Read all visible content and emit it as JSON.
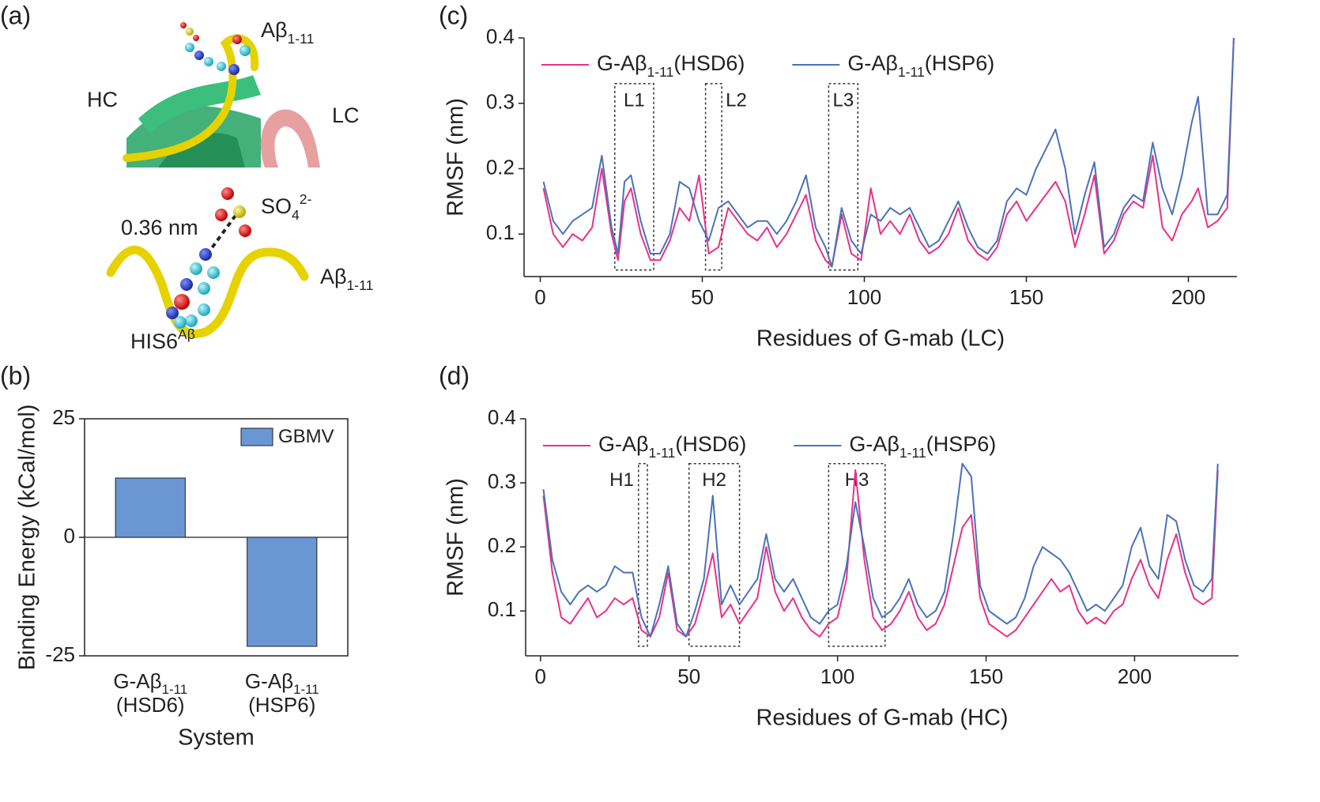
{
  "panel_a": {
    "panel_label": "(a)",
    "texts": {
      "ab_top": [
        {
          "t": "Aβ"
        },
        {
          "t": "1-11",
          "sub": true
        }
      ],
      "hc": [
        {
          "t": "HC"
        }
      ],
      "lc": [
        {
          "t": "LC"
        }
      ],
      "distance": [
        {
          "t": "0.36 nm"
        }
      ],
      "sulfate": [
        {
          "t": "SO"
        },
        {
          "t": "4",
          "sub": true
        },
        {
          "t": "2-",
          "sup": true
        }
      ],
      "ab_bottom": [
        {
          "t": "Aβ"
        },
        {
          "t": "1-11",
          "sub": true
        }
      ],
      "his": [
        {
          "t": "HIS6"
        },
        {
          "t": "Aβ",
          "sup": true
        }
      ]
    }
  },
  "chart_data": [
    {
      "type": "bar",
      "panel_label": "(b)",
      "y_label": "Binding Energy (kCal/mol)",
      "x_label": "System",
      "categories": [
        {
          "name": [
            {
              "t": "G-Aβ"
            },
            {
              "t": "1-11",
              "sub": true
            }
          ],
          "system": "(HSD6)"
        },
        {
          "name": [
            {
              "t": "G-Aβ"
            },
            {
              "t": "1-11",
              "sub": true
            }
          ],
          "system": "(HSP6)"
        }
      ],
      "series": [
        {
          "name": [
            {
              "t": "GBMV"
            }
          ],
          "color": "#6a97d4",
          "values": [
            12.5,
            -23
          ]
        }
      ],
      "ylim": [
        -25,
        25
      ],
      "yticks": [
        -25,
        0,
        25
      ],
      "legend": "upper right",
      "zero_line": true
    },
    {
      "type": "line",
      "panel_label": "(c)",
      "y_label": "RMSF (nm)",
      "x_label": "Residues of G-mab (LC)",
      "x": [
        1,
        4,
        7,
        10,
        13,
        16,
        19,
        22,
        24,
        26,
        28,
        31,
        34,
        37,
        40,
        43,
        46,
        49,
        52,
        55,
        58,
        61,
        64,
        67,
        70,
        73,
        76,
        79,
        82,
        85,
        88,
        90,
        93,
        96,
        99,
        102,
        105,
        108,
        111,
        114,
        117,
        120,
        123,
        126,
        129,
        132,
        135,
        138,
        141,
        144,
        147,
        150,
        153,
        156,
        159,
        162,
        165,
        168,
        171,
        174,
        177,
        180,
        183,
        186,
        189,
        192,
        195,
        198,
        201,
        203,
        206,
        209,
        212,
        214
      ],
      "series": [
        {
          "name": [
            {
              "t": "G-Aβ"
            },
            {
              "t": "1-11",
              "sub": true
            },
            {
              "t": "(HSD6)"
            }
          ],
          "color": "#e8318a",
          "values": [
            0.17,
            0.1,
            0.08,
            0.1,
            0.09,
            0.11,
            0.2,
            0.1,
            0.06,
            0.15,
            0.17,
            0.1,
            0.06,
            0.06,
            0.09,
            0.14,
            0.12,
            0.19,
            0.07,
            0.08,
            0.14,
            0.12,
            0.1,
            0.09,
            0.11,
            0.08,
            0.1,
            0.13,
            0.16,
            0.09,
            0.06,
            0.05,
            0.13,
            0.07,
            0.06,
            0.17,
            0.1,
            0.12,
            0.1,
            0.13,
            0.09,
            0.07,
            0.08,
            0.1,
            0.14,
            0.09,
            0.07,
            0.06,
            0.08,
            0.13,
            0.15,
            0.12,
            0.14,
            0.16,
            0.18,
            0.15,
            0.08,
            0.13,
            0.19,
            0.07,
            0.09,
            0.13,
            0.15,
            0.14,
            0.22,
            0.11,
            0.09,
            0.13,
            0.15,
            0.17,
            0.11,
            0.12,
            0.14,
            0.4
          ]
        },
        {
          "name": [
            {
              "t": "G-Aβ"
            },
            {
              "t": "1-11",
              "sub": true
            },
            {
              "t": "(HSP6)"
            }
          ],
          "color": "#4a72b8",
          "values": [
            0.18,
            0.12,
            0.1,
            0.12,
            0.13,
            0.14,
            0.22,
            0.11,
            0.07,
            0.18,
            0.19,
            0.12,
            0.07,
            0.07,
            0.1,
            0.18,
            0.17,
            0.12,
            0.09,
            0.14,
            0.15,
            0.13,
            0.11,
            0.12,
            0.12,
            0.1,
            0.12,
            0.15,
            0.19,
            0.11,
            0.08,
            0.05,
            0.14,
            0.09,
            0.07,
            0.13,
            0.12,
            0.14,
            0.13,
            0.14,
            0.11,
            0.08,
            0.09,
            0.12,
            0.15,
            0.11,
            0.08,
            0.07,
            0.09,
            0.15,
            0.17,
            0.16,
            0.2,
            0.23,
            0.26,
            0.2,
            0.1,
            0.16,
            0.21,
            0.08,
            0.1,
            0.14,
            0.16,
            0.15,
            0.24,
            0.17,
            0.13,
            0.19,
            0.27,
            0.31,
            0.13,
            0.13,
            0.16,
            0.4
          ]
        }
      ],
      "annotations": [
        {
          "label": "L1",
          "x": [
            23,
            35
          ],
          "y": [
            0.045,
            0.33
          ]
        },
        {
          "label": "L2",
          "x": [
            51,
            56
          ],
          "y": [
            0.045,
            0.33
          ]
        },
        {
          "label": "L3",
          "x": [
            89,
            98
          ],
          "y": [
            0.045,
            0.33
          ]
        }
      ],
      "xlim": [
        -5,
        215
      ],
      "xticks": [
        0,
        50,
        100,
        150,
        200
      ],
      "ylim": [
        0.035,
        0.4
      ],
      "yticks": [
        0.1,
        0.2,
        0.3,
        0.4
      ],
      "legend": "upper left"
    },
    {
      "type": "line",
      "panel_label": "(d)",
      "y_label": "RMSF (nm)",
      "x_label": "Residues of G-mab (HC)",
      "x": [
        1,
        4,
        7,
        10,
        13,
        16,
        19,
        22,
        25,
        28,
        31,
        34,
        37,
        40,
        43,
        46,
        49,
        52,
        55,
        58,
        61,
        64,
        67,
        70,
        73,
        76,
        79,
        82,
        85,
        88,
        91,
        94,
        97,
        100,
        103,
        106,
        109,
        112,
        115,
        118,
        121,
        124,
        127,
        130,
        133,
        136,
        139,
        142,
        145,
        148,
        151,
        154,
        157,
        160,
        163,
        166,
        169,
        172,
        175,
        178,
        181,
        184,
        187,
        190,
        193,
        196,
        199,
        202,
        205,
        208,
        211,
        214,
        217,
        220,
        223,
        226,
        228
      ],
      "series": [
        {
          "name": [
            {
              "t": "G-Aβ"
            },
            {
              "t": "1-11",
              "sub": true
            },
            {
              "t": "(HSD6)"
            }
          ],
          "color": "#e8318a",
          "values": [
            0.28,
            0.16,
            0.09,
            0.08,
            0.1,
            0.12,
            0.09,
            0.1,
            0.12,
            0.11,
            0.12,
            0.07,
            0.06,
            0.09,
            0.16,
            0.07,
            0.06,
            0.08,
            0.13,
            0.19,
            0.09,
            0.11,
            0.08,
            0.1,
            0.12,
            0.2,
            0.13,
            0.1,
            0.12,
            0.09,
            0.07,
            0.06,
            0.08,
            0.09,
            0.15,
            0.32,
            0.18,
            0.09,
            0.07,
            0.08,
            0.1,
            0.13,
            0.09,
            0.07,
            0.08,
            0.11,
            0.17,
            0.23,
            0.25,
            0.12,
            0.08,
            0.07,
            0.06,
            0.07,
            0.09,
            0.11,
            0.13,
            0.15,
            0.13,
            0.14,
            0.1,
            0.08,
            0.09,
            0.08,
            0.1,
            0.11,
            0.15,
            0.18,
            0.14,
            0.12,
            0.18,
            0.22,
            0.16,
            0.12,
            0.11,
            0.12,
            0.32
          ]
        },
        {
          "name": [
            {
              "t": "G-Aβ"
            },
            {
              "t": "1-11",
              "sub": true
            },
            {
              "t": "(HSP6)"
            }
          ],
          "color": "#4a72b8",
          "values": [
            0.29,
            0.18,
            0.13,
            0.11,
            0.13,
            0.14,
            0.13,
            0.14,
            0.17,
            0.16,
            0.16,
            0.09,
            0.06,
            0.11,
            0.17,
            0.08,
            0.06,
            0.1,
            0.15,
            0.28,
            0.11,
            0.14,
            0.11,
            0.13,
            0.15,
            0.22,
            0.15,
            0.13,
            0.15,
            0.12,
            0.09,
            0.08,
            0.1,
            0.11,
            0.17,
            0.27,
            0.2,
            0.12,
            0.09,
            0.1,
            0.12,
            0.15,
            0.11,
            0.09,
            0.1,
            0.13,
            0.22,
            0.33,
            0.31,
            0.14,
            0.1,
            0.09,
            0.08,
            0.09,
            0.12,
            0.17,
            0.2,
            0.19,
            0.18,
            0.16,
            0.13,
            0.1,
            0.11,
            0.1,
            0.12,
            0.14,
            0.2,
            0.23,
            0.17,
            0.15,
            0.25,
            0.24,
            0.18,
            0.14,
            0.13,
            0.15,
            0.33
          ]
        }
      ],
      "annotations": [
        {
          "label": "H1",
          "x": [
            33,
            36
          ],
          "y": [
            0.045,
            0.33
          ]
        },
        {
          "label": "H2",
          "x": [
            50,
            67
          ],
          "y": [
            0.045,
            0.33
          ]
        },
        {
          "label": "H3",
          "x": [
            97,
            116
          ],
          "y": [
            0.045,
            0.33
          ]
        }
      ],
      "xlim": [
        -5,
        235
      ],
      "xticks": [
        0,
        50,
        100,
        150,
        200
      ],
      "ylim": [
        0.03,
        0.4
      ],
      "yticks": [
        0.1,
        0.2,
        0.3,
        0.4
      ],
      "legend": "upper left"
    }
  ]
}
